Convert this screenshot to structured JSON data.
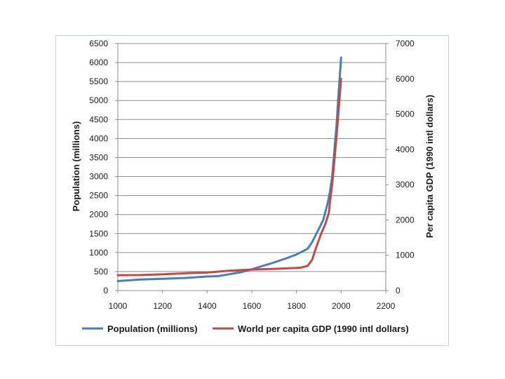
{
  "chart_data": {
    "type": "line",
    "title": "",
    "xlabel": "",
    "ylabel": "Population (millions)",
    "y2label": "Per capita GDP (1990 intl dollars)",
    "xlim": [
      1000,
      2200
    ],
    "ylim": [
      0,
      6500
    ],
    "y2lim": [
      0,
      7000
    ],
    "x_ticks": [
      1000,
      1200,
      1400,
      1600,
      1800,
      2000,
      2200
    ],
    "y_ticks": [
      0,
      500,
      1000,
      1500,
      2000,
      2500,
      3000,
      3500,
      4000,
      4500,
      5000,
      5500,
      6000,
      6500
    ],
    "y2_ticks": [
      0,
      1000,
      2000,
      3000,
      4000,
      5000,
      6000,
      7000
    ],
    "grid": "horizontal",
    "legend_position": "bottom",
    "series": [
      {
        "name": "Population (millions)",
        "axis": "left",
        "color": "#4a7ebb",
        "points": [
          [
            1000,
            250
          ],
          [
            1100,
            290
          ],
          [
            1200,
            310
          ],
          [
            1300,
            330
          ],
          [
            1400,
            370
          ],
          [
            1450,
            380
          ],
          [
            1500,
            430
          ],
          [
            1550,
            480
          ],
          [
            1600,
            560
          ],
          [
            1650,
            650
          ],
          [
            1700,
            740
          ],
          [
            1750,
            840
          ],
          [
            1800,
            950
          ],
          [
            1850,
            1100
          ],
          [
            1870,
            1270
          ],
          [
            1900,
            1620
          ],
          [
            1920,
            1860
          ],
          [
            1940,
            2300
          ],
          [
            1950,
            2600
          ],
          [
            1960,
            3000
          ],
          [
            1970,
            3700
          ],
          [
            1980,
            4400
          ],
          [
            1990,
            5300
          ],
          [
            1998,
            5950
          ],
          [
            2000,
            6130
          ]
        ]
      },
      {
        "name": "World per capita GDP (1990 intl dollars)",
        "axis": "right",
        "color": "#be4b48",
        "points": [
          [
            1000,
            435
          ],
          [
            1100,
            440
          ],
          [
            1200,
            460
          ],
          [
            1300,
            490
          ],
          [
            1400,
            510
          ],
          [
            1500,
            565
          ],
          [
            1600,
            595
          ],
          [
            1700,
            615
          ],
          [
            1800,
            640
          ],
          [
            1820,
            650
          ],
          [
            1850,
            700
          ],
          [
            1870,
            870
          ],
          [
            1890,
            1250
          ],
          [
            1910,
            1600
          ],
          [
            1930,
            1900
          ],
          [
            1940,
            2100
          ],
          [
            1945,
            2200
          ],
          [
            1950,
            2500
          ],
          [
            1960,
            3000
          ],
          [
            1970,
            3700
          ],
          [
            1980,
            4400
          ],
          [
            1990,
            5200
          ],
          [
            2000,
            6000
          ]
        ]
      }
    ]
  }
}
